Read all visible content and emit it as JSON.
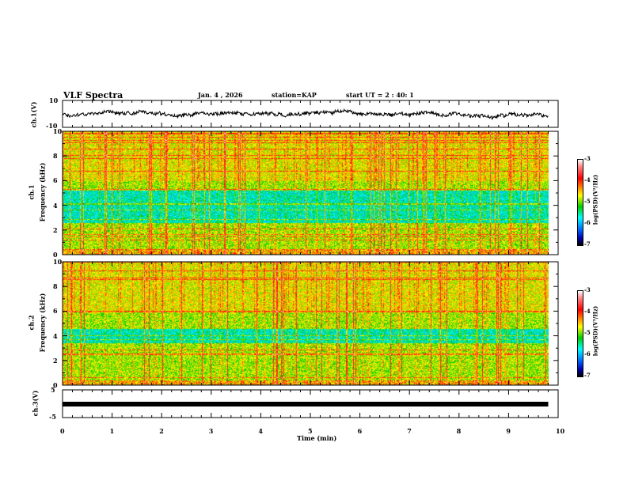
{
  "header": {
    "title": "VLF Spectra",
    "date": "Jan. 4 , 2026",
    "station": "station=KAP",
    "start": "start UT =  2 : 40: 1"
  },
  "chart_data": [
    {
      "type": "line",
      "name": "ch1 waveform",
      "ylabel": "ch.1(V)",
      "ylim": [
        -10,
        10
      ],
      "yticks": [
        "10",
        "-10"
      ],
      "xlim": [
        0,
        9.8
      ]
    },
    {
      "type": "heatmap",
      "name": "ch1 spectrogram",
      "ylabel": "ch.1\nFrequency (kHz)",
      "ylabel_ch": "ch.1",
      "ylabel_f": "Frequency (kHz)",
      "ylim": [
        0,
        10
      ],
      "yticks": [
        "0",
        "2",
        "4",
        "6",
        "8",
        "10"
      ],
      "colorbar": {
        "label": "log(PSD)(V²/Hz)",
        "range": [
          -7,
          -3
        ],
        "ticks": [
          "-3",
          "-4",
          "-5",
          "-6",
          "-7"
        ]
      },
      "low_power_band_khz": [
        2.6,
        5.2
      ]
    },
    {
      "type": "heatmap",
      "name": "ch2 spectrogram",
      "ylabel_ch": "ch.2",
      "ylabel_f": "Frequency (kHz)",
      "ylim": [
        0,
        10
      ],
      "yticks": [
        "0",
        "2",
        "4",
        "6",
        "8",
        "10"
      ],
      "colorbar": {
        "label": "log(PSD)(V²/Hz)",
        "range": [
          -7,
          -3
        ],
        "ticks": [
          "-3",
          "-4",
          "-5",
          "-6",
          "-7"
        ]
      },
      "low_power_band_khz": [
        3.4,
        4.6
      ]
    },
    {
      "type": "line",
      "name": "ch3 waveform",
      "ylabel": "ch.3(V)",
      "ylim": [
        -5,
        5
      ],
      "yticks": [
        "5",
        "-5"
      ],
      "value_approx": 0.5
    },
    {
      "xlabel": "Time (min)",
      "xlim": [
        0,
        10
      ],
      "xticks": [
        "0",
        "1",
        "2",
        "3",
        "4",
        "5",
        "6",
        "7",
        "8",
        "9",
        "10"
      ]
    }
  ]
}
